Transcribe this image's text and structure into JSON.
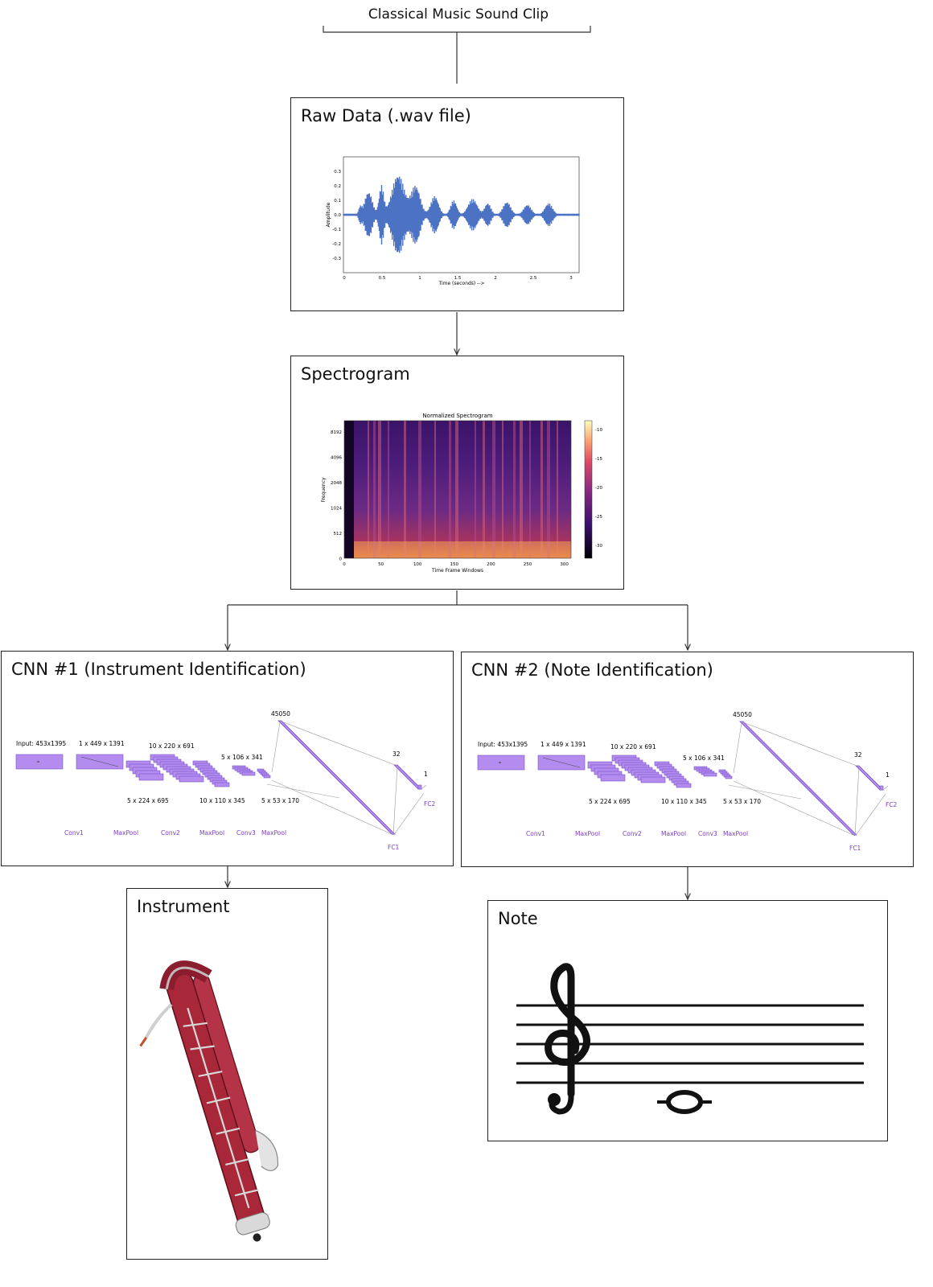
{
  "source": {
    "label": "Classical Music Sound Clip"
  },
  "raw": {
    "title": "Raw Data (.wav file)",
    "ylabel": "Amplitude",
    "xlabel": "Time (seconds) -->",
    "yticks": [
      "0.3",
      "0.2",
      "0.1",
      "0.0",
      "-0.1",
      "-0.2",
      "-0.3"
    ],
    "xticks": [
      "0",
      "0.5",
      "1",
      "1.5",
      "2",
      "2.5",
      "3"
    ],
    "color": "#4c72c4"
  },
  "spectrogram": {
    "title": "Spectrogram",
    "plot_title": "Normalized Spectrogram",
    "ylabel": "Frequency",
    "xlabel": "Time Frame Windows",
    "yticks": [
      "8192",
      "4096",
      "2048",
      "1024",
      "512",
      "0"
    ],
    "xticks": [
      "0",
      "50",
      "100",
      "150",
      "200",
      "250",
      "300"
    ],
    "cbar_ticks": [
      "-10",
      "-15",
      "-20",
      "-25",
      "-30"
    ]
  },
  "cnn1": {
    "title": "CNN #1 (Instrument Identification)",
    "input": "Input: 453x1395",
    "l1": "1 x 449 x 1391",
    "l2": "10 x 220 x 691",
    "l3": "5 x 106 x 341",
    "l4": "5 x 224 x 695",
    "l5": "10 x 110 x 345",
    "l6": "5 x 53 x 170",
    "fc1_size": "45050",
    "fc2_size": "32",
    "out_size": "1",
    "ops": [
      "Conv1",
      "MaxPool",
      "Conv2",
      "MaxPool",
      "Conv3",
      "MaxPool"
    ],
    "fc1": "FC1",
    "fc2": "FC2"
  },
  "cnn2": {
    "title": "CNN #2 (Note Identification)",
    "input": "Input: 453x1395",
    "l1": "1 x 449 x 1391",
    "l2": "10 x 220 x 691",
    "l3": "5 x 106 x 341",
    "l4": "5 x 224 x 695",
    "l5": "10 x 110 x 345",
    "l6": "5 x 53 x 170",
    "fc1_size": "45050",
    "fc2_size": "32",
    "out_size": "1",
    "ops": [
      "Conv1",
      "MaxPool",
      "Conv2",
      "MaxPool",
      "Conv3",
      "MaxPool"
    ],
    "fc1": "FC1",
    "fc2": "FC2"
  },
  "instrument": {
    "title": "Instrument"
  },
  "note": {
    "title": "Note"
  },
  "colors": {
    "layer": "#b48cf0",
    "layer_stroke": "#7a52c7",
    "label_purple": "#7b3fc4"
  }
}
